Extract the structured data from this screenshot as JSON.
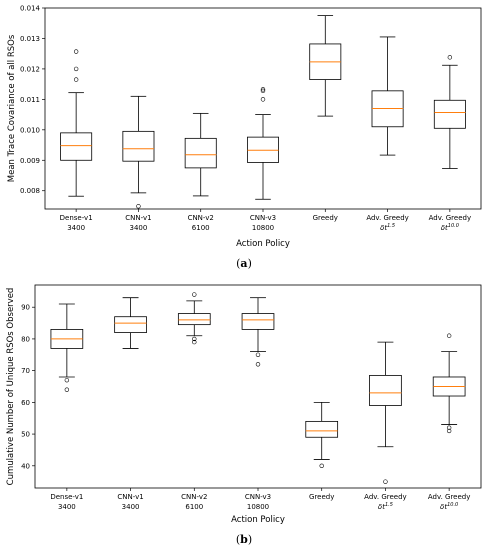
{
  "chart_data": [
    {
      "type": "box",
      "caption": "(a)",
      "xlabel": "Action Policy",
      "ylabel": "Mean Trace Covariance of all RSOs",
      "ylim": [
        0.0074,
        0.014
      ],
      "yticks": [
        "0.008",
        "0.009",
        "0.010",
        "0.011",
        "0.012",
        "0.013",
        "0.014"
      ],
      "ytick_values": [
        0.008,
        0.009,
        0.01,
        0.011,
        0.012,
        0.013,
        0.014
      ],
      "categories": [
        {
          "line1": "Dense-v1",
          "line2": "3400"
        },
        {
          "line1": "CNN-v1",
          "line2": "3400"
        },
        {
          "line1": "CNN-v2",
          "line2": "6100"
        },
        {
          "line1": "CNN-v3",
          "line2": "10800"
        },
        {
          "line1": "Greedy",
          "line2": ""
        },
        {
          "line1": "Adv. Greedy",
          "line2": "δt^1.5"
        },
        {
          "line1": "Adv. Greedy",
          "line2": "δt^10.0"
        }
      ],
      "boxes": [
        {
          "whislo": 0.00782,
          "q1": 0.009,
          "med": 0.00948,
          "q3": 0.0099,
          "whishi": 0.01122,
          "fliers": [
            0.01165,
            0.012,
            0.01257
          ]
        },
        {
          "whislo": 0.00793,
          "q1": 0.00897,
          "med": 0.00938,
          "q3": 0.00995,
          "whishi": 0.0111,
          "fliers": [
            0.00749
          ]
        },
        {
          "whislo": 0.00783,
          "q1": 0.00875,
          "med": 0.00918,
          "q3": 0.00972,
          "whishi": 0.01054,
          "fliers": []
        },
        {
          "whislo": 0.00772,
          "q1": 0.00893,
          "med": 0.00933,
          "q3": 0.00976,
          "whishi": 0.0105,
          "fliers": [
            0.011,
            0.01128,
            0.01133
          ]
        },
        {
          "whislo": 0.01045,
          "q1": 0.01165,
          "med": 0.01223,
          "q3": 0.01282,
          "whishi": 0.01375,
          "fliers": []
        },
        {
          "whislo": 0.00917,
          "q1": 0.0101,
          "med": 0.0107,
          "q3": 0.01128,
          "whishi": 0.01305,
          "fliers": []
        },
        {
          "whislo": 0.00873,
          "q1": 0.01005,
          "med": 0.01057,
          "q3": 0.01097,
          "whishi": 0.01212,
          "fliers": [
            0.01238
          ]
        }
      ]
    },
    {
      "type": "box",
      "caption": "(b)",
      "xlabel": "Action Policy",
      "ylabel": "Cumulative Number of Unique RSOs Observed",
      "ylim": [
        33,
        97
      ],
      "yticks": [
        "40",
        "50",
        "60",
        "70",
        "80",
        "90"
      ],
      "ytick_values": [
        40,
        50,
        60,
        70,
        80,
        90
      ],
      "categories": [
        {
          "line1": "Dense-v1",
          "line2": "3400"
        },
        {
          "line1": "CNN-v1",
          "line2": "3400"
        },
        {
          "line1": "CNN-v2",
          "line2": "6100"
        },
        {
          "line1": "CNN-v3",
          "line2": "10800"
        },
        {
          "line1": "Greedy",
          "line2": ""
        },
        {
          "line1": "Adv. Greedy",
          "line2": "δt^1.5"
        },
        {
          "line1": "Adv. Greedy",
          "line2": "δt^10.0"
        }
      ],
      "boxes": [
        {
          "whislo": 68,
          "q1": 77,
          "med": 80,
          "q3": 83,
          "whishi": 91,
          "fliers": [
            67,
            64
          ]
        },
        {
          "whislo": 77,
          "q1": 82,
          "med": 85,
          "q3": 87,
          "whishi": 93,
          "fliers": []
        },
        {
          "whislo": 81,
          "q1": 84.5,
          "med": 86,
          "q3": 88,
          "whishi": 92,
          "fliers": [
            94,
            80,
            79
          ]
        },
        {
          "whislo": 76,
          "q1": 83,
          "med": 86,
          "q3": 88,
          "whishi": 93,
          "fliers": [
            75,
            72
          ]
        },
        {
          "whislo": 42,
          "q1": 49,
          "med": 51,
          "q3": 54,
          "whishi": 60,
          "fliers": [
            40
          ]
        },
        {
          "whislo": 46,
          "q1": 59,
          "med": 63,
          "q3": 68.5,
          "whishi": 79,
          "fliers": [
            35
          ]
        },
        {
          "whislo": 53,
          "q1": 62,
          "med": 65,
          "q3": 68,
          "whishi": 76,
          "fliers": [
            81,
            52,
            51
          ]
        }
      ]
    }
  ]
}
